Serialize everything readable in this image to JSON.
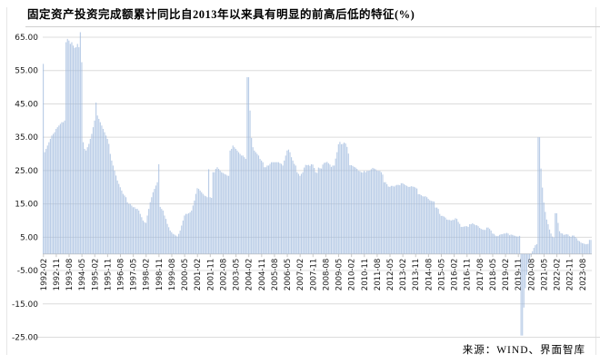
{
  "title": "固定资产投资完成额累计同比自2013年以来具有明显的前高后低的特征(%)",
  "source": "来源：WIND、界面智库",
  "colors": {
    "bar": "#9fbade",
    "grid": "#dcdcdc",
    "axis_line": "#c8c8c8",
    "text": "#1a1a1a"
  },
  "chart_data": {
    "type": "bar",
    "title": "固定资产投资完成额累计同比自2013年以来具有明显的前高后低的特征(%)",
    "ylabel": "",
    "xlabel": "",
    "ylim": [
      -25,
      65
    ],
    "y_ticks": [
      65,
      55,
      45,
      35,
      25,
      15,
      5,
      -5,
      -15,
      -25
    ],
    "y_tick_decimals": 2,
    "grid": "horizontal",
    "legend": "none",
    "frequency": "monthly",
    "x_first": "1992-02",
    "x_last": "2024-02",
    "x_tick_step_months": 9,
    "x_tick_labels": [
      "1992-02",
      "1992-11",
      "1993-08",
      "1994-05",
      "1995-02",
      "1995-11",
      "1996-08",
      "1997-05",
      "1998-02",
      "1998-11",
      "1999-08",
      "2000-05",
      "2001-02",
      "2001-11",
      "2002-08",
      "2003-05",
      "2004-02",
      "2004-11",
      "2005-08",
      "2006-05",
      "2007-02",
      "2007-11",
      "2008-08",
      "2009-05",
      "2010-02",
      "2010-11",
      "2011-08",
      "2012-05",
      "2013-02",
      "2013-11",
      "2014-08",
      "2015-05",
      "2016-02",
      "2016-11",
      "2017-08",
      "2018-05",
      "2019-02",
      "2019-11",
      "2020-08",
      "2021-05",
      "2022-02",
      "2022-11",
      "2023-08"
    ],
    "series_name": "固定资产投资完成额累计同比(%)",
    "values": [
      57.0,
      30.5,
      31.5,
      32.5,
      33.5,
      34.5,
      35.5,
      36.0,
      36.5,
      37.5,
      38.0,
      38.5,
      39.0,
      39.5,
      39.5,
      40.0,
      63.5,
      64.5,
      64.0,
      63.0,
      63.5,
      62.5,
      61.8,
      62.0,
      63.0,
      62.0,
      66.5,
      57.5,
      33.5,
      31.5,
      31.0,
      32.0,
      33.0,
      34.5,
      36.0,
      38.0,
      40.0,
      45.4,
      41.5,
      40.5,
      39.5,
      38.5,
      37.5,
      36.5,
      35.5,
      34.5,
      33.0,
      30.0,
      28.0,
      26.5,
      25.0,
      23.5,
      22.0,
      21.0,
      20.0,
      19.0,
      18.0,
      17.5,
      17.0,
      15.5,
      15.0,
      15.0,
      14.5,
      14.0,
      14.0,
      13.5,
      13.5,
      13.0,
      12.0,
      11.0,
      10.0,
      9.5,
      9.3,
      11.5,
      13.5,
      15.5,
      17.0,
      18.5,
      19.5,
      20.5,
      21.5,
      26.9,
      14.1,
      13.5,
      13.0,
      11.5,
      10.5,
      9.0,
      8.0,
      7.0,
      6.5,
      6.0,
      5.8,
      5.5,
      5.2,
      6.0,
      7.0,
      8.5,
      10.0,
      11.5,
      12.0,
      12.0,
      12.2,
      12.5,
      13.0,
      14.5,
      16.0,
      18.0,
      19.7,
      19.5,
      19.0,
      18.5,
      18.0,
      17.5,
      17.3,
      17.0,
      25.4,
      17.0,
      16.8,
      24.5,
      24.5,
      25.5,
      26.0,
      25.5,
      25.0,
      24.5,
      24.3,
      24.0,
      23.8,
      23.5,
      23.4,
      31.0,
      31.5,
      32.5,
      32.0,
      31.5,
      31.0,
      30.5,
      30.0,
      29.5,
      29.5,
      29.0,
      28.5,
      53.0,
      53.0,
      43.0,
      34.8,
      32.0,
      31.0,
      30.5,
      30.0,
      29.5,
      28.5,
      28.0,
      27.5,
      26.0,
      26.0,
      26.5,
      26.5,
      27.0,
      27.5,
      27.5,
      27.5,
      27.5,
      27.5,
      27.5,
      27.2,
      27.0,
      26.5,
      28.0,
      29.5,
      31.0,
      31.3,
      30.5,
      29.0,
      28.0,
      27.0,
      26.5,
      24.5,
      24.0,
      23.4,
      24.0,
      24.5,
      25.9,
      26.7,
      26.6,
      26.7,
      26.4,
      26.9,
      26.8,
      25.8,
      24.5,
      24.3,
      25.9,
      25.7,
      25.6,
      26.8,
      27.3,
      27.4,
      27.6,
      27.2,
      26.8,
      26.1,
      26.5,
      26.5,
      28.6,
      30.5,
      32.9,
      33.6,
      32.9,
      33.0,
      33.4,
      33.1,
      32.1,
      30.1,
      26.6,
      26.6,
      26.4,
      26.1,
      25.9,
      25.5,
      24.9,
      24.8,
      24.5,
      24.4,
      24.9,
      24.5,
      24.9,
      24.9,
      25.0,
      25.4,
      25.8,
      25.6,
      25.4,
      25.0,
      24.9,
      24.9,
      24.5,
      23.8,
      21.5,
      21.5,
      20.9,
      20.2,
      20.1,
      20.4,
      20.4,
      20.2,
      20.5,
      20.7,
      20.7,
      20.6,
      21.2,
      21.2,
      20.9,
      20.6,
      20.4,
      20.1,
      20.1,
      20.3,
      20.2,
      20.1,
      19.9,
      19.6,
      17.9,
      17.9,
      17.6,
      17.3,
      17.2,
      17.3,
      17.0,
      16.5,
      16.1,
      15.9,
      15.8,
      15.7,
      13.9,
      13.9,
      13.5,
      12.0,
      11.4,
      11.4,
      11.2,
      10.9,
      10.3,
      10.2,
      10.2,
      10.0,
      10.2,
      10.2,
      10.7,
      10.5,
      9.6,
      9.0,
      8.1,
      8.1,
      8.2,
      8.3,
      8.3,
      8.1,
      8.9,
      8.9,
      9.2,
      8.9,
      8.6,
      8.6,
      8.3,
      7.8,
      7.5,
      7.3,
      7.2,
      7.2,
      7.9,
      7.9,
      7.5,
      7.0,
      6.1,
      6.0,
      5.5,
      5.3,
      5.4,
      5.7,
      5.9,
      5.9,
      6.1,
      6.1,
      6.3,
      6.1,
      5.6,
      5.8,
      5.7,
      5.5,
      5.4,
      5.2,
      5.2,
      5.4,
      -24.5,
      -24.5,
      -16.1,
      -10.3,
      -6.3,
      -3.1,
      -1.6,
      -0.3,
      0.8,
      1.8,
      2.6,
      2.9,
      35.0,
      35.0,
      25.6,
      19.9,
      15.4,
      12.6,
      10.3,
      8.9,
      7.3,
      6.1,
      5.2,
      4.9,
      12.2,
      12.2,
      9.3,
      6.8,
      6.2,
      6.1,
      5.7,
      5.8,
      5.9,
      5.8,
      5.3,
      5.1,
      5.5,
      5.5,
      5.1,
      4.7,
      4.0,
      3.8,
      3.4,
      3.2,
      3.1,
      2.9,
      2.9,
      3.0,
      4.2,
      4.2
    ]
  }
}
